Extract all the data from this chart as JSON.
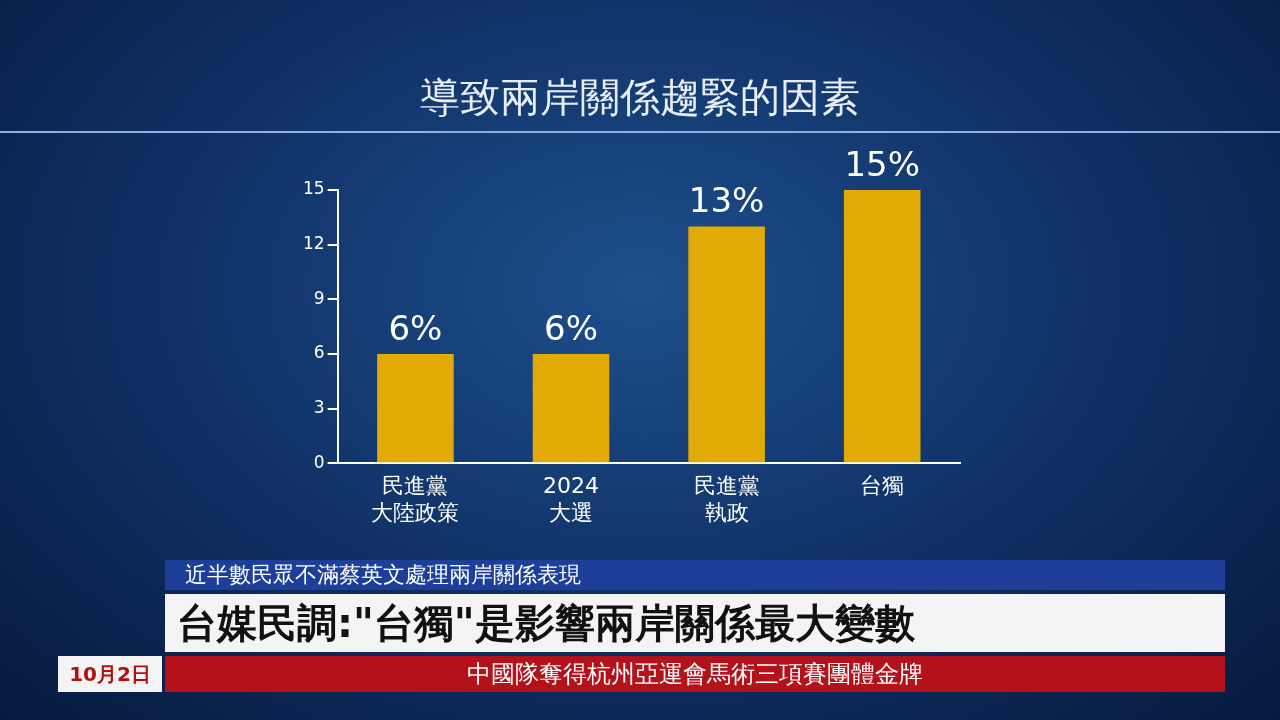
{
  "chart_data": {
    "type": "bar",
    "title": "導致兩岸關係趨緊的因素",
    "categories": [
      "民進黨大陸政策",
      "2024\n大選",
      "民進黨執政",
      "台獨"
    ],
    "values": [
      6,
      6,
      13,
      15
    ],
    "value_labels": [
      "6%",
      "6%",
      "13%",
      "15%"
    ],
    "color": "#e2aa06",
    "ylim": [
      0,
      15
    ],
    "yticks": [
      0,
      3,
      6,
      9,
      12,
      15
    ],
    "grid": false,
    "legend": false,
    "annotations": [
      "近半數民眾不滿蔡英文處理兩岸關係表現",
      "台媒民調:\"台獨\"是影響兩岸關係最大變數",
      "10月2日",
      "中國隊奪得杭州亞運會馬術三項賽團體金牌"
    ]
  }
}
